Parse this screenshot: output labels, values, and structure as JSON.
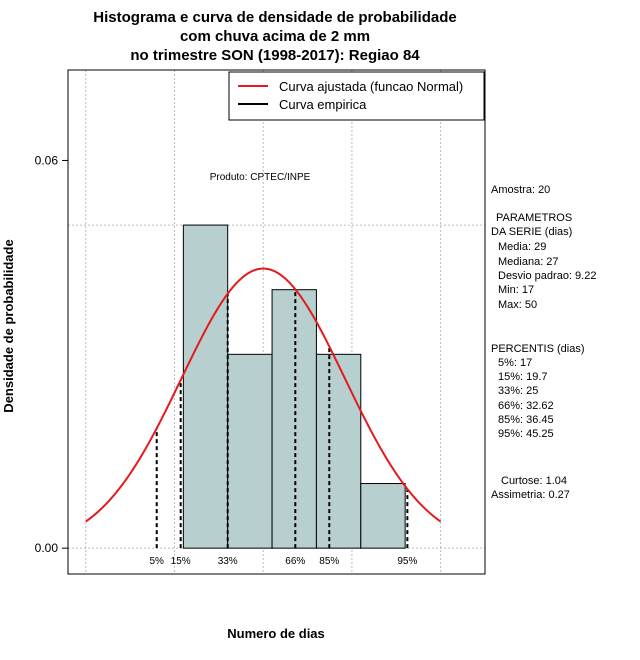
{
  "chart_data": {
    "type": "histogram",
    "title": [
      "Histograma e curva de densidade de probabilidade",
      "com chuva acima de 2 mm",
      "no trimestre SON (1998-2017): Regiao 84"
    ],
    "xlabel": "Numero de dias",
    "ylabel": "Densidade de probabilidade",
    "xlim": [
      7,
      54
    ],
    "ylim": [
      -0.004,
      0.074
    ],
    "y_ticks": [
      0.0,
      0.06
    ],
    "y_tick_labels": [
      "0.00",
      "0.06"
    ],
    "bins": [
      {
        "from": 20,
        "to": 25,
        "density": 0.05
      },
      {
        "from": 25,
        "to": 30,
        "density": 0.03
      },
      {
        "from": 30,
        "to": 35,
        "density": 0.04
      },
      {
        "from": 35,
        "to": 40,
        "density": 0.03
      },
      {
        "from": 40,
        "to": 45,
        "density": 0.01
      }
    ],
    "normal_fit": {
      "mean": 29,
      "sd": 9.22,
      "x_from": 9,
      "x_to": 49
    },
    "percentile_lines": [
      {
        "label": "5%",
        "value": 17
      },
      {
        "label": "15%",
        "value": 19.7
      },
      {
        "label": "33%",
        "value": 25
      },
      {
        "label": "66%",
        "value": 32.62
      },
      {
        "label": "85%",
        "value": 36.45
      },
      {
        "label": "95%",
        "value": 45.25
      }
    ],
    "grid_x": [
      9,
      19,
      29,
      39,
      49
    ],
    "grid_y": [
      0.0,
      0.05
    ],
    "legend": [
      {
        "label": "Curva ajustada (funcao Normal)",
        "color": "#e41a1c"
      },
      {
        "label": "Curva empirica",
        "color": "#000000"
      }
    ],
    "product_note": "Produto: CPTEC/INPE",
    "colors": {
      "bar_fill": "#b7cfcf",
      "bar_stroke": "#000000",
      "fit_line": "#e41a1c",
      "grid": "#bbbbbb"
    }
  },
  "stats_panel": {
    "sample": "Amostra: 20",
    "params_header_1": "PARAMETROS",
    "params_header_2": "DA SERIE (dias)",
    "params": [
      "Media: 29",
      "Mediana: 27",
      "Desvio padrao: 9.22",
      "Min: 17",
      "Max: 50"
    ],
    "percentis_header": "PERCENTIS (dias)",
    "percentis": [
      "5%: 17",
      "15%: 19.7",
      "33%: 25",
      "66%: 32.62",
      "85%: 36.45",
      "95%: 45.25"
    ],
    "curtose": "Curtose: 1.04",
    "assimetria": "Assimetria: 0.27"
  }
}
